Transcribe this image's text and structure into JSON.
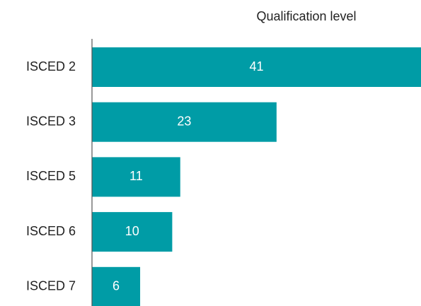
{
  "chart_data": {
    "type": "bar",
    "orientation": "horizontal",
    "title": "Qualification level",
    "categories": [
      "ISCED 2",
      "ISCED 3",
      "ISCED 5",
      "ISCED 6",
      "ISCED 7"
    ],
    "values": [
      41,
      23,
      11,
      10,
      6
    ],
    "color": "#009ca6"
  }
}
